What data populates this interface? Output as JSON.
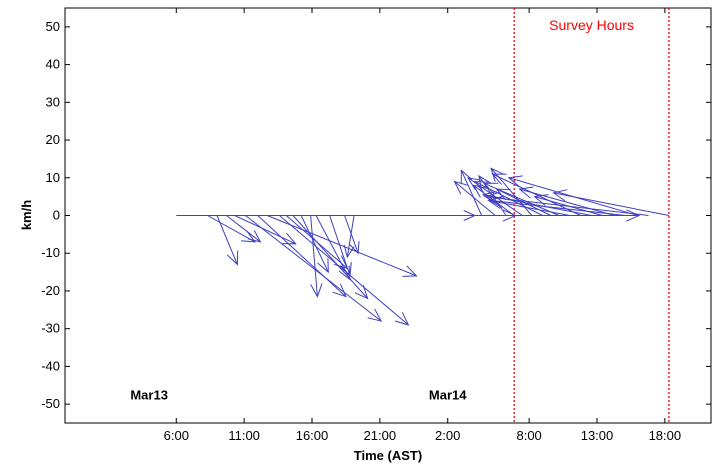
{
  "chart_data": {
    "type": "quiver",
    "title": "",
    "xlabel": "Time (AST)",
    "ylabel": "km/h",
    "x_ticks": [
      "6:00",
      "11:00",
      "16:00",
      "21:00",
      "2:00",
      "8:00",
      "13:00",
      "18:00"
    ],
    "x_tick_hours": [
      6,
      11,
      16,
      21,
      26,
      32,
      37,
      42
    ],
    "xlim_hours": [
      -2.2,
      45.4
    ],
    "ylim": [
      -55,
      55
    ],
    "y_ticks": [
      50,
      40,
      30,
      20,
      10,
      0,
      -10,
      -20,
      -30,
      -40,
      -50
    ],
    "grid": false,
    "date_labels": [
      {
        "text": "Mar13",
        "hour": 4
      },
      {
        "text": "Mar14",
        "hour": 26
      }
    ],
    "survey_window": {
      "label": "Survey Hours",
      "start_hour": 30.9,
      "end_hour": 42.3,
      "color": "#ff0000"
    },
    "arrow_color": "#4040c0",
    "vectors": [
      {
        "hour": 6.0,
        "u": 25,
        "v": 0
      },
      {
        "hour": 8.3,
        "u": 3.5,
        "v": -7
      },
      {
        "hour": 9.0,
        "u": 1.5,
        "v": -13
      },
      {
        "hour": 9.7,
        "u": 2.5,
        "v": -7
      },
      {
        "hour": 10.3,
        "u": 4.5,
        "v": -7.5
      },
      {
        "hour": 11.1,
        "u": 10,
        "v": -28
      },
      {
        "hour": 12.0,
        "u": 6.5,
        "v": -21.5
      },
      {
        "hour": 12.7,
        "u": 11,
        "v": -16
      },
      {
        "hour": 13.6,
        "u": 9.5,
        "v": -29
      },
      {
        "hour": 14.1,
        "u": 4.5,
        "v": -14
      },
      {
        "hour": 14.6,
        "u": 5.5,
        "v": -22
      },
      {
        "hour": 15.2,
        "u": 2,
        "v": -15
      },
      {
        "hour": 15.9,
        "u": 0.5,
        "v": -21.5
      },
      {
        "hour": 16.3,
        "u": 2.5,
        "v": -17
      },
      {
        "hour": 17.3,
        "u": 1.5,
        "v": -16
      },
      {
        "hour": 18.4,
        "u": 1,
        "v": -10
      },
      {
        "hour": 19.1,
        "u": -0.5,
        "v": -11
      },
      {
        "hour": 20.1,
        "u": 20,
        "v": 0
      },
      {
        "hour": 25.0,
        "u": 3,
        "v": 0
      },
      {
        "hour": 28.5,
        "u": -1.5,
        "v": 12
      },
      {
        "hour": 29.5,
        "u": -3,
        "v": 9
      },
      {
        "hour": 30.3,
        "u": -2,
        "v": 10.5
      },
      {
        "hour": 30.9,
        "u": -3,
        "v": 8
      },
      {
        "hour": 31.5,
        "u": -4,
        "v": 10
      },
      {
        "hour": 32.2,
        "u": -3,
        "v": 12.5
      },
      {
        "hour": 33.0,
        "u": -5,
        "v": 9
      },
      {
        "hour": 33.6,
        "u": -4,
        "v": 7
      },
      {
        "hour": 34.2,
        "u": -5.5,
        "v": 8.5
      },
      {
        "hour": 35.0,
        "u": -6,
        "v": 4
      },
      {
        "hour": 35.8,
        "u": -6.5,
        "v": 11
      },
      {
        "hour": 36.6,
        "u": -8,
        "v": 5.5
      },
      {
        "hour": 37.4,
        "u": -5,
        "v": 5
      },
      {
        "hour": 38.3,
        "u": -7,
        "v": 7
      },
      {
        "hour": 39.1,
        "u": -10,
        "v": 4
      },
      {
        "hour": 40.0,
        "u": -9.5,
        "v": 10
      },
      {
        "hour": 40.8,
        "u": -12,
        "v": 5
      },
      {
        "hour": 42.3,
        "u": -8.5,
        "v": 6
      }
    ]
  }
}
